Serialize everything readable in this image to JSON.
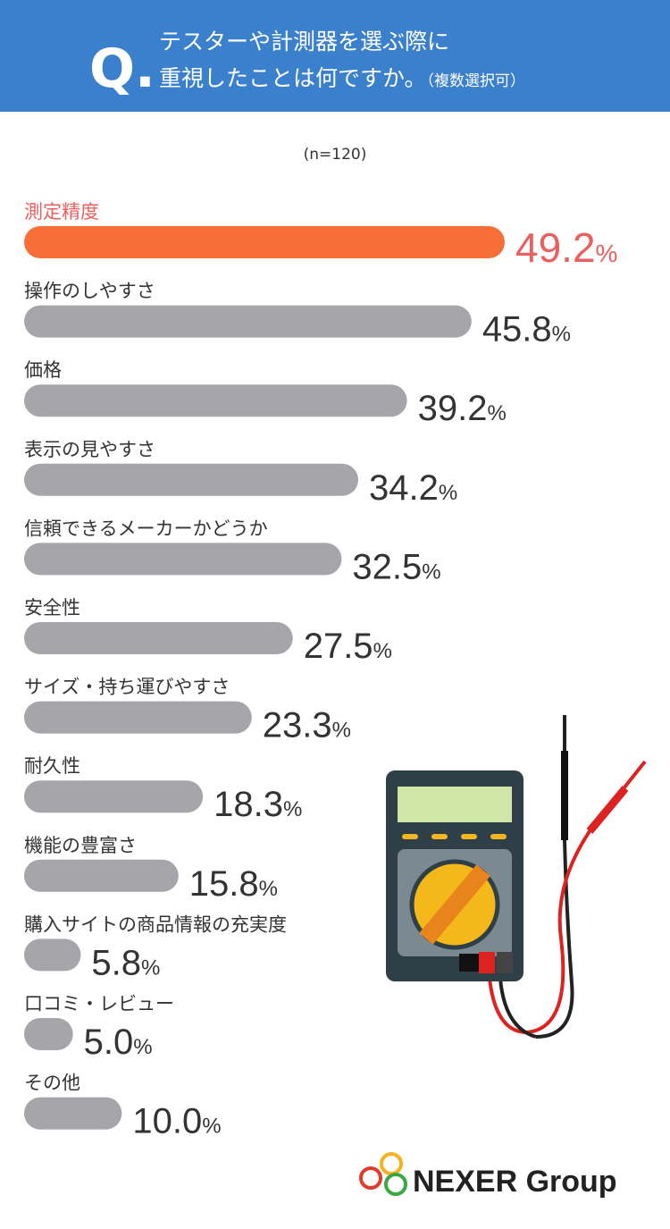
{
  "chart_data": {
    "type": "bar",
    "title_mark": "Q.",
    "title_lines": [
      "テスターや計測器を選ぶ際に",
      "重視したことは何ですか。"
    ],
    "title_note": "（複数選択可）",
    "subtitle": "(n=120)",
    "categories": [
      "測定精度",
      "操作のしやすさ",
      "価格",
      "表示の見やすさ",
      "信頼できるメーカーかどうか",
      "安全性",
      "サイズ・持ち運びやすさ",
      "耐久性",
      "機能の豊富さ",
      "購入サイトの商品情報の充実度",
      "口コミ・レビュー",
      "その他"
    ],
    "values": [
      49.2,
      45.8,
      39.2,
      34.2,
      32.5,
      27.5,
      23.3,
      18.3,
      15.8,
      5.8,
      5.0,
      10.0
    ],
    "value_labels": [
      "49.2%",
      "45.8%",
      "39.2%",
      "34.2%",
      "32.5%",
      "27.5%",
      "23.3%",
      "18.3%",
      "15.8%",
      "5.8%",
      "5.0%",
      "10.0%"
    ],
    "colors": [
      "#f76e37",
      "#a5a5aa",
      "#a5a5aa",
      "#a5a5aa",
      "#a5a5aa",
      "#a5a5aa",
      "#a5a5aa",
      "#a5a5aa",
      "#a5a5aa",
      "#a5a5aa",
      "#a5a5aa",
      "#a5a5aa"
    ],
    "logo": "NEXER Group"
  }
}
